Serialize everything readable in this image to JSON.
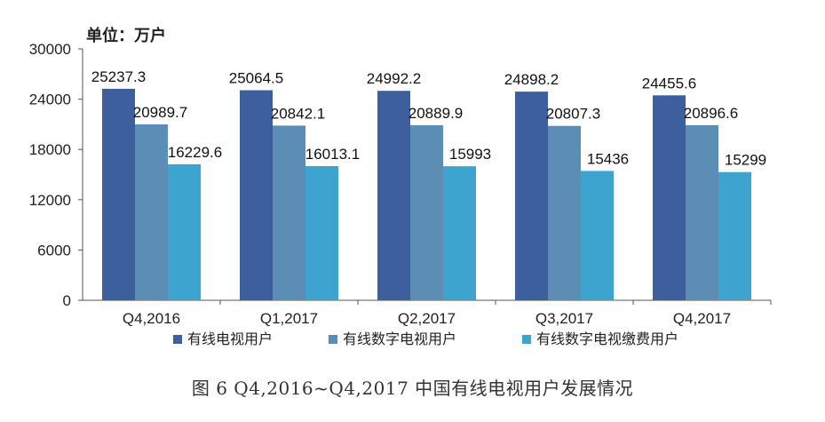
{
  "unit_label": "单位：万户",
  "caption": "图 6  Q4,2016~Q4,2017 中国有线电视用户发展情况",
  "chart_data": {
    "type": "bar",
    "categories": [
      "Q4,2016",
      "Q1,2017",
      "Q2,2017",
      "Q3,2017",
      "Q4,2017"
    ],
    "series": [
      {
        "name": "有线电视用户",
        "values": [
          25237.3,
          25064.5,
          24992.2,
          24898.2,
          24455.6
        ],
        "labels": [
          "25237.3",
          "25064.5",
          "24992.2",
          "24898.2",
          "24455.6"
        ],
        "color": "#3e5f9e"
      },
      {
        "name": "有线数字电视用户",
        "values": [
          20989.7,
          20842.1,
          20889.9,
          20807.3,
          20896.6
        ],
        "labels": [
          "20989.7",
          "20842.1",
          "20889.9",
          "20807.3",
          "20896.6"
        ],
        "color": "#5b8db5"
      },
      {
        "name": "有线数字电视缴费用户",
        "values": [
          16229.6,
          16013.1,
          15993,
          15436,
          15299
        ],
        "labels": [
          "16229.6",
          "16013.1",
          "15993",
          "15436",
          "15299"
        ],
        "color": "#3da4cf"
      }
    ],
    "yticks": [
      "0",
      "6000",
      "12000",
      "18000",
      "24000",
      "30000"
    ],
    "ylim": [
      0,
      30000
    ],
    "grid": false,
    "legend_position": "bottom"
  }
}
